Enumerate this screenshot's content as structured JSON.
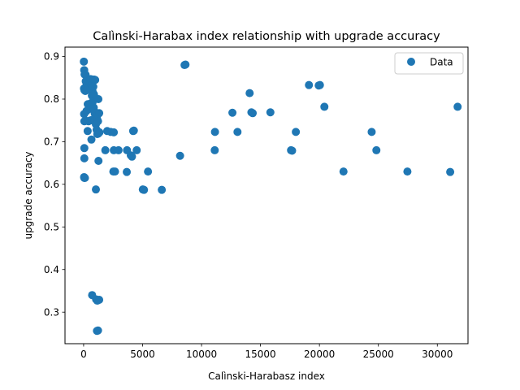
{
  "chart_data": {
    "type": "scatter",
    "title": "Calìnski-Harabax index relationship with upgrade accuracy",
    "xlabel": "Calìnski-Harabasz index",
    "ylabel": "upgrade accuracy",
    "xlim": [
      -1580,
      32600
    ],
    "ylim": [
      0.226,
      0.922
    ],
    "xticks": [
      0,
      5000,
      10000,
      15000,
      20000,
      25000,
      30000
    ],
    "yticks": [
      0.3,
      0.4,
      0.5,
      0.6,
      0.7,
      0.8,
      0.9
    ],
    "grid": false,
    "legend": {
      "position": "top-right",
      "entries": [
        "Data"
      ]
    },
    "series": [
      {
        "name": "Data",
        "color": "#1f77b4",
        "points": [
          [
            20,
            0.888
          ],
          [
            50,
            0.868
          ],
          [
            80,
            0.858
          ],
          [
            170,
            0.857
          ],
          [
            30,
            0.825
          ],
          [
            70,
            0.821
          ],
          [
            140,
            0.819
          ],
          [
            250,
            0.833
          ],
          [
            320,
            0.822
          ],
          [
            420,
            0.827
          ],
          [
            180,
            0.842
          ],
          [
            500,
            0.845
          ],
          [
            560,
            0.838
          ],
          [
            610,
            0.847
          ],
          [
            660,
            0.833
          ],
          [
            700,
            0.831
          ],
          [
            760,
            0.818
          ],
          [
            880,
            0.846
          ],
          [
            980,
            0.845
          ],
          [
            820,
            0.829
          ],
          [
            350,
            0.788
          ],
          [
            440,
            0.784
          ],
          [
            520,
            0.777
          ],
          [
            600,
            0.79
          ],
          [
            680,
            0.783
          ],
          [
            760,
            0.793
          ],
          [
            860,
            0.78
          ],
          [
            1250,
            0.8
          ],
          [
            700,
            0.808
          ],
          [
            880,
            0.811
          ],
          [
            40,
            0.765
          ],
          [
            240,
            0.772
          ],
          [
            940,
            0.766
          ],
          [
            1060,
            0.768
          ],
          [
            1180,
            0.763
          ],
          [
            1320,
            0.767
          ],
          [
            60,
            0.748
          ],
          [
            200,
            0.749
          ],
          [
            420,
            0.748
          ],
          [
            560,
            0.75
          ],
          [
            720,
            0.751
          ],
          [
            940,
            0.749
          ],
          [
            1040,
            0.741
          ],
          [
            1160,
            0.752
          ],
          [
            1220,
            0.748
          ],
          [
            1100,
            0.728
          ],
          [
            340,
            0.725
          ],
          [
            1160,
            0.718
          ],
          [
            1240,
            0.719
          ],
          [
            1340,
            0.722
          ],
          [
            2000,
            0.725
          ],
          [
            2300,
            0.723
          ],
          [
            2560,
            0.722
          ],
          [
            4200,
            0.725
          ],
          [
            4260,
            0.726
          ],
          [
            660,
            0.705
          ],
          [
            60,
            0.685
          ],
          [
            1840,
            0.68
          ],
          [
            2560,
            0.68
          ],
          [
            2960,
            0.68
          ],
          [
            3680,
            0.68
          ],
          [
            4500,
            0.68
          ],
          [
            4000,
            0.668
          ],
          [
            4100,
            0.665
          ],
          [
            60,
            0.661
          ],
          [
            1260,
            0.655
          ],
          [
            40,
            0.617
          ],
          [
            60,
            0.615
          ],
          [
            110,
            0.615
          ],
          [
            2520,
            0.63
          ],
          [
            2660,
            0.63
          ],
          [
            3660,
            0.629
          ],
          [
            5460,
            0.63
          ],
          [
            1040,
            0.588
          ],
          [
            5020,
            0.588
          ],
          [
            5120,
            0.587
          ],
          [
            6630,
            0.587
          ],
          [
            720,
            0.34
          ],
          [
            1060,
            0.33
          ],
          [
            1160,
            0.327
          ],
          [
            1320,
            0.329
          ],
          [
            1130,
            0.256
          ],
          [
            1220,
            0.257
          ],
          [
            8560,
            0.88
          ],
          [
            8640,
            0.881
          ],
          [
            8180,
            0.667
          ],
          [
            11140,
            0.723
          ],
          [
            11120,
            0.68
          ],
          [
            12620,
            0.768
          ],
          [
            13050,
            0.723
          ],
          [
            14080,
            0.814
          ],
          [
            14230,
            0.769
          ],
          [
            14340,
            0.767
          ],
          [
            15840,
            0.769
          ],
          [
            17590,
            0.68
          ],
          [
            17680,
            0.679
          ],
          [
            18000,
            0.723
          ],
          [
            19110,
            0.833
          ],
          [
            19940,
            0.832
          ],
          [
            20040,
            0.833
          ],
          [
            20420,
            0.782
          ],
          [
            22040,
            0.63
          ],
          [
            24430,
            0.723
          ],
          [
            24830,
            0.68
          ],
          [
            27460,
            0.63
          ],
          [
            31090,
            0.629
          ],
          [
            31720,
            0.782
          ]
        ]
      }
    ]
  }
}
